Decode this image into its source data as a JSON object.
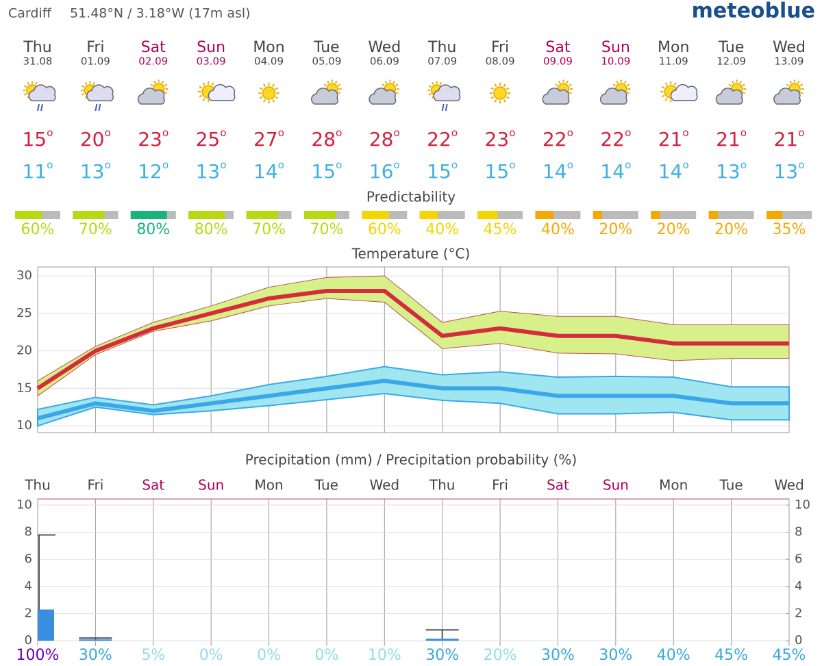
{
  "header": {
    "location": "Cardiff",
    "coords": "51.48°N / 3.18°W (17m asl)",
    "brand": "meteoblue"
  },
  "degree": "o",
  "days": [
    {
      "name": "Thu",
      "date": "31.08",
      "color": "#444444",
      "max": 15,
      "min": 11
    },
    {
      "name": "Fri",
      "date": "01.09",
      "color": "#444444",
      "max": 20,
      "min": 13
    },
    {
      "name": "Sat",
      "date": "02.09",
      "color": "#b0005a",
      "max": 23,
      "min": 12
    },
    {
      "name": "Sun",
      "date": "03.09",
      "color": "#b0005a",
      "max": 25,
      "min": 13
    },
    {
      "name": "Mon",
      "date": "04.09",
      "color": "#444444",
      "max": 27,
      "min": 14
    },
    {
      "name": "Tue",
      "date": "05.09",
      "color": "#444444",
      "max": 28,
      "min": 15
    },
    {
      "name": "Wed",
      "date": "06.09",
      "color": "#444444",
      "max": 28,
      "min": 16
    },
    {
      "name": "Thu",
      "date": "07.09",
      "color": "#444444",
      "max": 22,
      "min": 15
    },
    {
      "name": "Fri",
      "date": "08.09",
      "color": "#444444",
      "max": 23,
      "min": 15
    },
    {
      "name": "Sat",
      "date": "09.09",
      "color": "#b0005a",
      "max": 22,
      "min": 14
    },
    {
      "name": "Sun",
      "date": "10.09",
      "color": "#b0005a",
      "max": 22,
      "min": 14
    },
    {
      "name": "Mon",
      "date": "11.09",
      "color": "#444444",
      "max": 21,
      "min": 14
    },
    {
      "name": "Tue",
      "date": "12.09",
      "color": "#444444",
      "max": 21,
      "min": 13
    },
    {
      "name": "Wed",
      "date": "13.09",
      "color": "#444444",
      "max": 21,
      "min": 13
    }
  ],
  "predictability": {
    "title": "Predictability",
    "values": [
      60,
      70,
      80,
      80,
      70,
      70,
      60,
      40,
      45,
      40,
      20,
      20,
      20,
      35
    ],
    "value_labels": [
      "60%",
      "70%",
      "80%",
      "80%",
      "70%",
      "70%",
      "60%",
      "40%",
      "45%",
      "40%",
      "20%",
      "20%",
      "20%",
      "35%"
    ],
    "colors": [
      "#b8d810",
      "#b8d810",
      "#19b37c",
      "#b8d810",
      "#b8d810",
      "#b8d810",
      "#f5d400",
      "#f5d400",
      "#f5d400",
      "#f5a800",
      "#f5a800",
      "#f5a800",
      "#f5a800",
      "#f5a800"
    ]
  },
  "chart_data": [
    {
      "type": "line",
      "title": "Temperature (°C)",
      "ylim": [
        9.1,
        31.2
      ],
      "yticks": [
        10,
        15,
        20,
        25,
        30
      ],
      "grid": true,
      "series": [
        {
          "color": "#d42c3c",
          "band_color": "#d8f08a",
          "values": [
            15,
            20,
            23,
            25,
            27,
            28,
            28,
            22,
            23,
            22,
            22,
            21,
            21,
            21
          ],
          "upper": [
            16,
            20.6,
            23.8,
            26,
            28.5,
            29.8,
            30,
            23.8,
            25.3,
            24.6,
            24.6,
            23.5,
            23.5,
            23.5
          ],
          "lower": [
            14,
            19.5,
            22.6,
            24,
            26,
            27,
            26.5,
            20.3,
            21,
            19.7,
            19.6,
            18.7,
            19,
            19
          ]
        },
        {
          "color": "#3aa8e8",
          "band_color": "#a0e6f0",
          "values": [
            11,
            13,
            12,
            13,
            14,
            15,
            16,
            15,
            15,
            14,
            14,
            14,
            13,
            13
          ],
          "upper": [
            12.2,
            13.8,
            12.8,
            14,
            15.5,
            16.6,
            17.9,
            16.8,
            17.2,
            16.5,
            16.6,
            16.5,
            15.2,
            15.2
          ],
          "lower": [
            10,
            12.5,
            11.5,
            12,
            12.7,
            13.5,
            14.3,
            13.4,
            13,
            11.6,
            11.6,
            11.8,
            10.8,
            10.8
          ]
        }
      ]
    },
    {
      "type": "bar",
      "title": "Precipitation (mm) / Precipitation probability (%)",
      "categories": [
        "Thu",
        "Fri",
        "Sat",
        "Sun",
        "Mon",
        "Tue",
        "Wed",
        "Thu",
        "Fri",
        "Sat",
        "Sun",
        "Mon",
        "Tue",
        "Wed"
      ],
      "category_colors": [
        "#444444",
        "#444444",
        "#b0005a",
        "#b0005a",
        "#444444",
        "#444444",
        "#444444",
        "#444444",
        "#444444",
        "#b0005a",
        "#b0005a",
        "#444444",
        "#444444",
        "#444444"
      ],
      "ylim": [
        -0.4,
        10.45
      ],
      "yticks": [
        0,
        2,
        4,
        6,
        8,
        10
      ],
      "y2lim": [
        -0.4,
        10.45
      ],
      "y2ticks": [
        0,
        2,
        4,
        6,
        8,
        10
      ],
      "grid": true,
      "color": "#3a8ee0",
      "values": [
        2.3,
        0.1,
        0,
        0,
        0,
        0,
        0,
        0.15,
        0,
        0,
        0,
        0,
        0,
        0
      ],
      "upper": [
        7.8,
        0.2,
        0,
        0,
        0,
        0,
        0,
        0.8,
        0,
        0,
        0,
        0,
        0,
        0
      ],
      "probability": [
        100,
        30,
        5,
        0,
        0,
        0,
        10,
        30,
        20,
        30,
        30,
        40,
        45,
        45
      ],
      "probability_labels": [
        "100%",
        "30%",
        "5%",
        "0%",
        "0%",
        "0%",
        "10%",
        "30%",
        "20%",
        "30%",
        "30%",
        "40%",
        "45%",
        "45%"
      ],
      "probability_colors": [
        "#6a00b8",
        "#38a8dc",
        "#90dcea",
        "#90dcea",
        "#90dcea",
        "#90dcea",
        "#90dcea",
        "#38a8dc",
        "#90dcea",
        "#38a8dc",
        "#38a8dc",
        "#38a8dc",
        "#38a8dc",
        "#38a8dc"
      ]
    }
  ]
}
